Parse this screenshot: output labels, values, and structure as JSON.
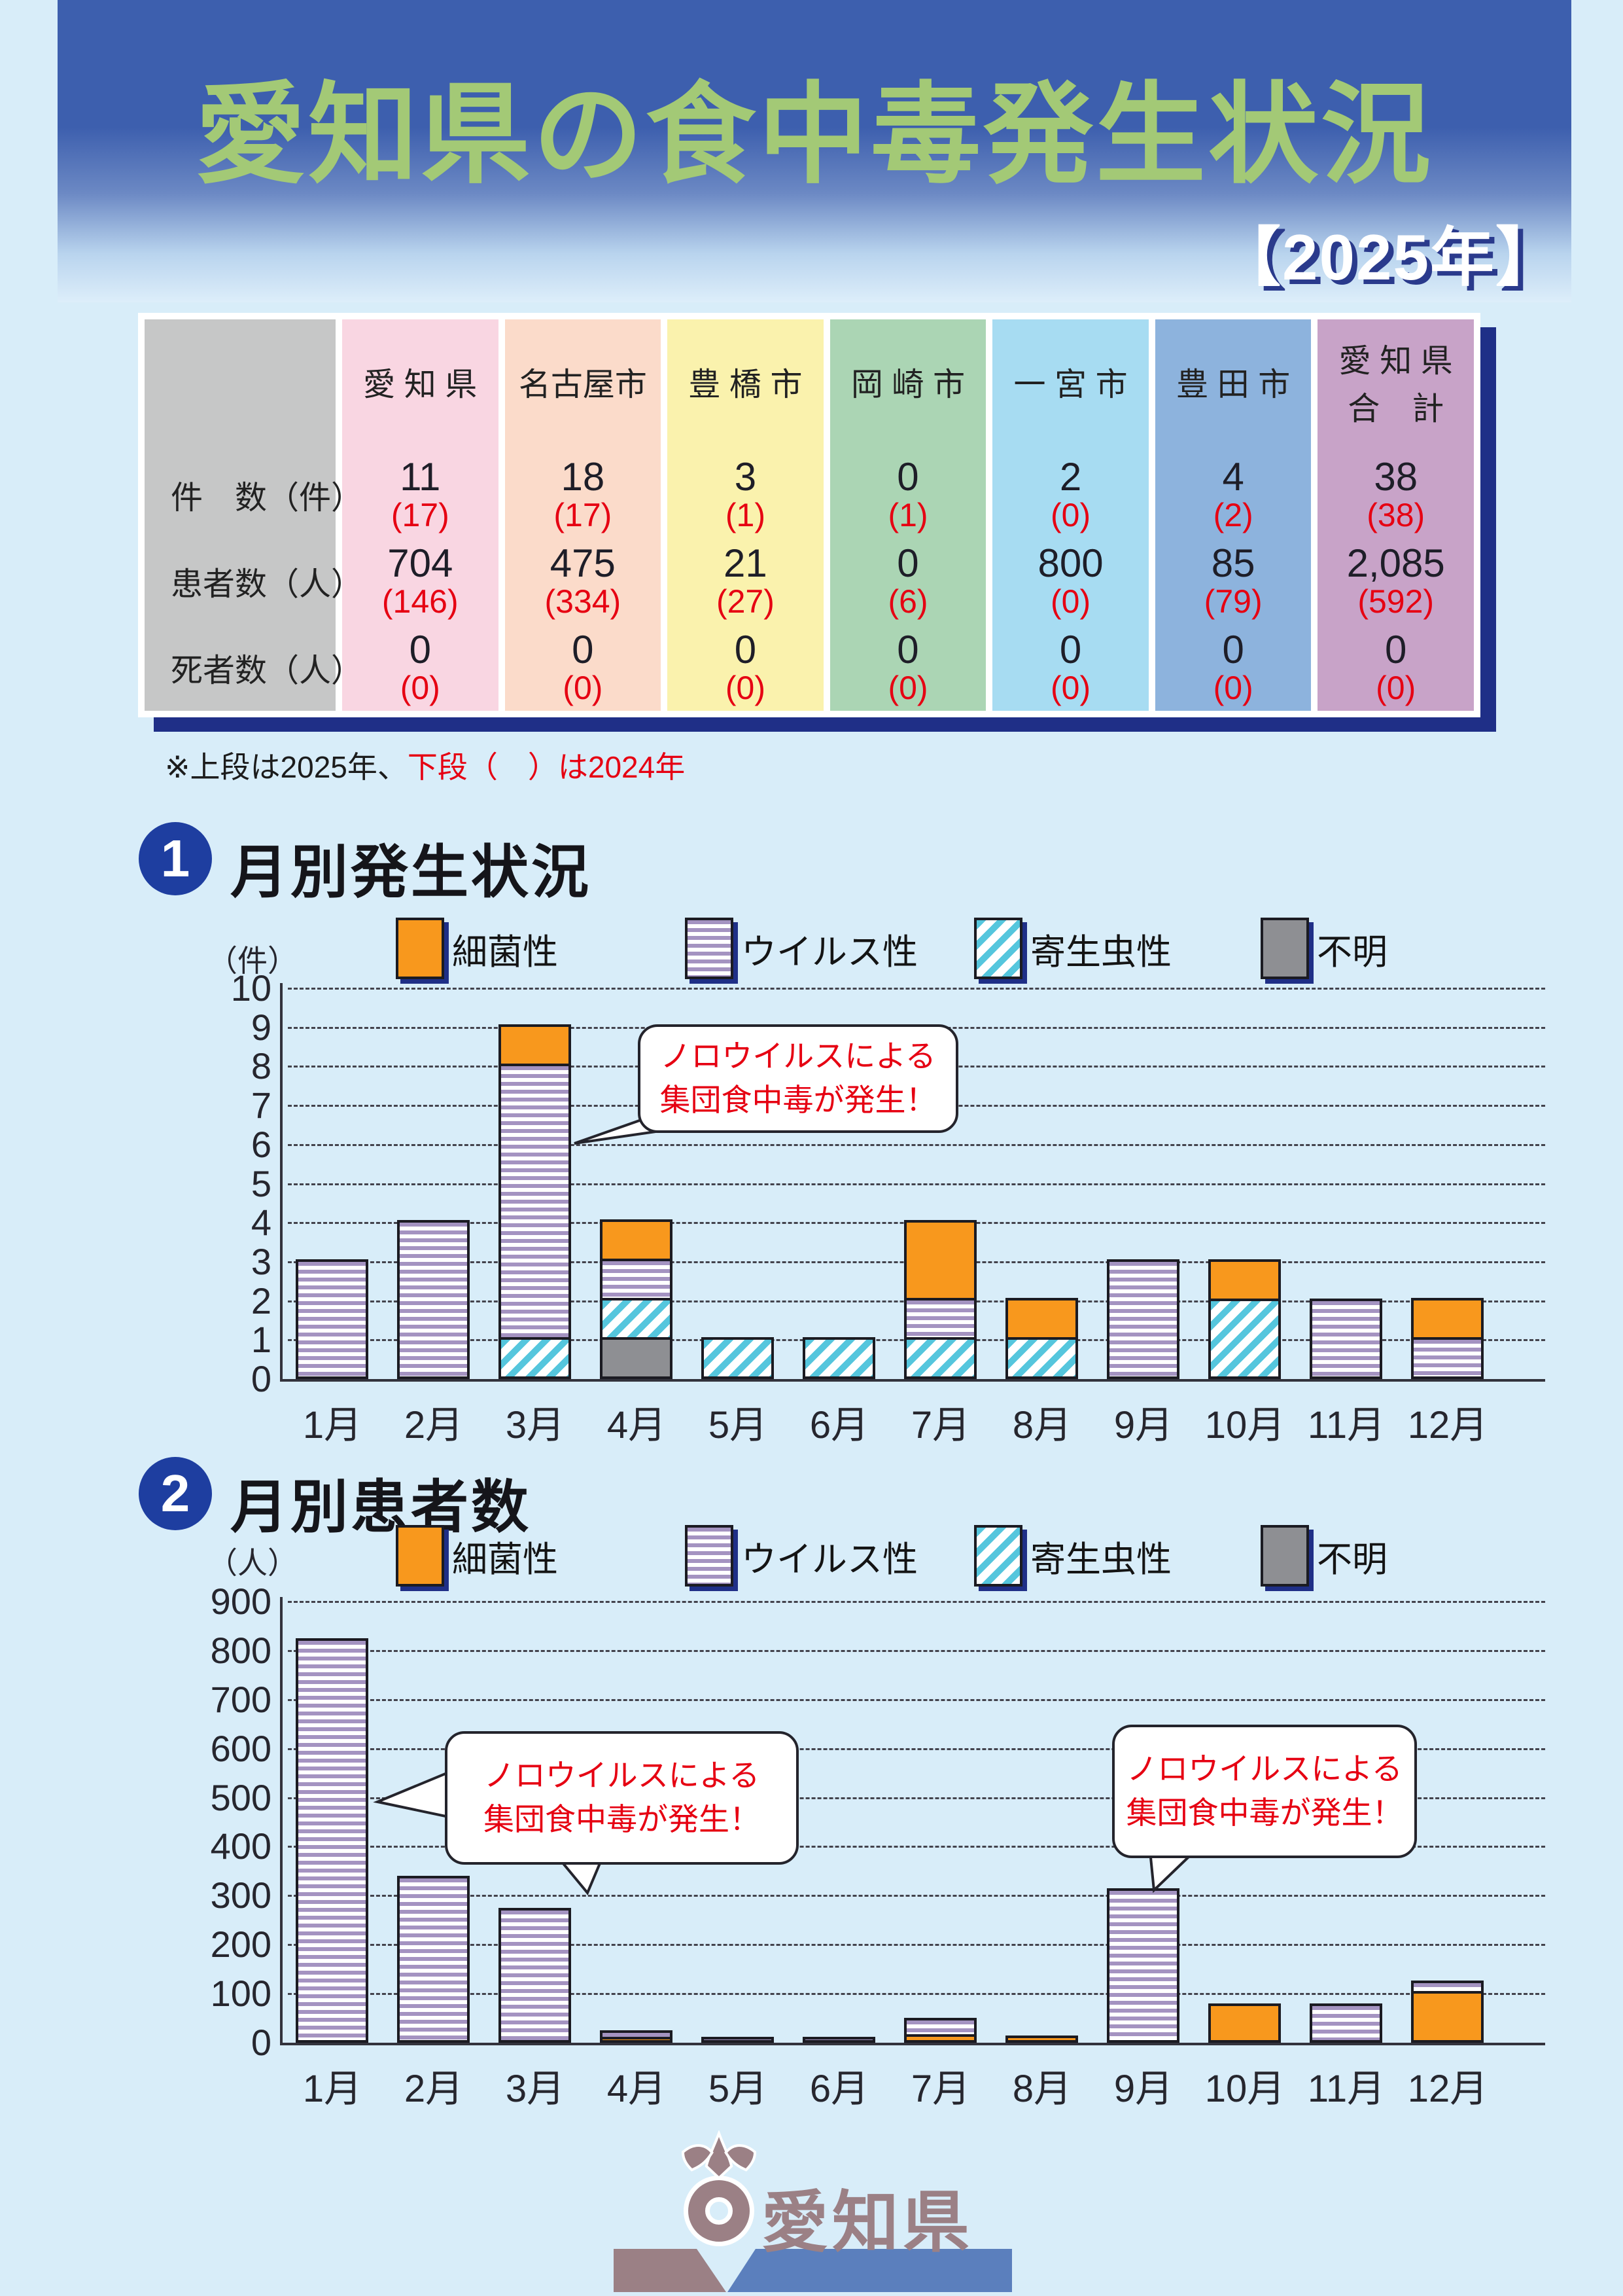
{
  "header": {
    "title": "愛知県の食中毒発生状況",
    "year": "【2025年】",
    "title_color": "#a3c976"
  },
  "summary_table": {
    "note_black": "※上段は2025年、",
    "note_red": "下段（　）は2024年",
    "row_labels": [
      "件　数（件）",
      "患者数（人）",
      "死者数（人）"
    ],
    "columns": [
      {
        "name": "愛 知 県",
        "name2": "",
        "color": "#f9d6e2",
        "values": [
          "11",
          "704",
          "0"
        ],
        "prev": [
          "(17)",
          "(146)",
          "(0)"
        ]
      },
      {
        "name": "名古屋市",
        "name2": "",
        "color": "#fbdbca",
        "values": [
          "18",
          "475",
          "0"
        ],
        "prev": [
          "(17)",
          "(334)",
          "(0)"
        ]
      },
      {
        "name": "豊 橋 市",
        "name2": "",
        "color": "#faf2ad",
        "values": [
          "3",
          "21",
          "0"
        ],
        "prev": [
          "(1)",
          "(27)",
          "(0)"
        ]
      },
      {
        "name": "岡 崎 市",
        "name2": "",
        "color": "#abd5b4",
        "values": [
          "0",
          "0",
          "0"
        ],
        "prev": [
          "(1)",
          "(6)",
          "(0)"
        ]
      },
      {
        "name": "一 宮 市",
        "name2": "",
        "color": "#a7dcf2",
        "values": [
          "2",
          "800",
          "0"
        ],
        "prev": [
          "(0)",
          "(0)",
          "(0)"
        ]
      },
      {
        "name": "豊 田 市",
        "name2": "",
        "color": "#8db3dd",
        "values": [
          "4",
          "85",
          "0"
        ],
        "prev": [
          "(2)",
          "(79)",
          "(0)"
        ]
      },
      {
        "name": "愛 知 県",
        "name2": "合　計",
        "color": "#c8a3c8",
        "values": [
          "38",
          "2,085",
          "0"
        ],
        "prev": [
          "(38)",
          "(592)",
          "(0)"
        ]
      }
    ]
  },
  "section1": {
    "number": "1",
    "title": "月別発生状況",
    "unit_label": "（件）"
  },
  "section2": {
    "number": "2",
    "title": "月別患者数",
    "unit_label": "（人）"
  },
  "legend": {
    "items": [
      {
        "key": "bacteria",
        "label": "細菌性"
      },
      {
        "key": "virus",
        "label": "ウイルス性"
      },
      {
        "key": "parasite",
        "label": "寄生虫性"
      },
      {
        "key": "unknown",
        "label": "不明"
      }
    ]
  },
  "colors": {
    "bacteria_orange": "#f8981d",
    "virus_purple": "#a493c1",
    "parasite_cyan": "#55c6dd",
    "unknown_gray": "#8e8f93",
    "highlight_red": "#e60012",
    "shadow_navy": "#1f2f87",
    "title_green": "#a3c976",
    "section_circle_blue": "#1e3ea0",
    "page_bg": "#d8edf9"
  },
  "chart_data": [
    {
      "id": "monthly-cases",
      "type": "bar",
      "stacked": true,
      "title": "月別発生状況",
      "ylabel": "件",
      "unit_label": "（件）",
      "categories": [
        "1月",
        "2月",
        "3月",
        "4月",
        "5月",
        "6月",
        "7月",
        "8月",
        "9月",
        "10月",
        "11月",
        "12月"
      ],
      "ylim": [
        0,
        10
      ],
      "ytick_step": 1,
      "yticks": [
        "0",
        "1",
        "2",
        "3",
        "4",
        "5",
        "6",
        "7",
        "8",
        "9",
        "10"
      ],
      "grid": "dashed",
      "legend_position": "top",
      "series": [
        {
          "key": "bacteria",
          "name": "細菌性",
          "values": [
            0,
            0,
            1,
            1,
            0,
            0,
            2,
            1,
            0,
            1,
            0,
            1
          ]
        },
        {
          "key": "virus",
          "name": "ウイルス性",
          "values": [
            3,
            4,
            7,
            1,
            0,
            0,
            1,
            0,
            3,
            0,
            2,
            1
          ]
        },
        {
          "key": "parasite",
          "name": "寄生虫性",
          "values": [
            0,
            0,
            1,
            1,
            1,
            1,
            1,
            1,
            0,
            2,
            0,
            0
          ]
        },
        {
          "key": "unknown",
          "name": "不明",
          "values": [
            0,
            0,
            0,
            1,
            0,
            0,
            0,
            0,
            0,
            0,
            0,
            0
          ]
        }
      ],
      "totals": [
        3,
        4,
        9,
        4,
        1,
        1,
        4,
        2,
        3,
        3,
        2,
        2
      ],
      "stack_order_per_month": [
        [
          "virus"
        ],
        [
          "virus"
        ],
        [
          "parasite",
          "virus",
          "bacteria"
        ],
        [
          "unknown",
          "parasite",
          "virus",
          "bacteria"
        ],
        [
          "parasite"
        ],
        [
          "parasite"
        ],
        [
          "parasite",
          "virus",
          "bacteria"
        ],
        [
          "parasite",
          "bacteria"
        ],
        [
          "virus"
        ],
        [
          "parasite",
          "bacteria"
        ],
        [
          "virus"
        ],
        [
          "virus",
          "bacteria"
        ]
      ],
      "annotations": [
        {
          "line1": "ノロウイルスによる",
          "line2": "集団食中毒が発生！",
          "target": "3月"
        }
      ]
    },
    {
      "id": "monthly-patients",
      "type": "bar",
      "stacked": true,
      "title": "月別患者数",
      "ylabel": "人",
      "unit_label": "（人）",
      "categories": [
        "1月",
        "2月",
        "3月",
        "4月",
        "5月",
        "6月",
        "7月",
        "8月",
        "9月",
        "10月",
        "11月",
        "12月"
      ],
      "ylim": [
        0,
        900
      ],
      "ytick_step": 100,
      "yticks": [
        "0",
        "100",
        "200",
        "300",
        "400",
        "500",
        "600",
        "700",
        "800",
        "900"
      ],
      "grid": "dashed",
      "legend_position": "top",
      "series": [
        {
          "key": "bacteria",
          "name": "細菌性",
          "values": [
            0,
            0,
            0,
            6,
            0,
            0,
            12,
            10,
            0,
            75,
            0,
            100
          ]
        },
        {
          "key": "virus",
          "name": "ウイルス性",
          "values": [
            820,
            335,
            270,
            14,
            2,
            2,
            33,
            0,
            310,
            0,
            75,
            21
          ]
        },
        {
          "key": "parasite",
          "name": "寄生虫性",
          "values": [
            0,
            0,
            0,
            0,
            0,
            0,
            0,
            0,
            0,
            0,
            0,
            0
          ]
        },
        {
          "key": "unknown",
          "name": "不明",
          "values": [
            0,
            0,
            0,
            0,
            0,
            0,
            0,
            0,
            0,
            0,
            0,
            0
          ]
        }
      ],
      "totals": [
        820,
        335,
        270,
        20,
        2,
        2,
        45,
        10,
        310,
        75,
        75,
        121
      ],
      "stack_order_per_month": [
        [
          "virus"
        ],
        [
          "virus"
        ],
        [
          "virus"
        ],
        [
          "bacteria",
          "virus"
        ],
        [
          "virus"
        ],
        [
          "virus"
        ],
        [
          "bacteria",
          "virus"
        ],
        [
          "bacteria"
        ],
        [
          "virus"
        ],
        [
          "bacteria"
        ],
        [
          "virus"
        ],
        [
          "bacteria",
          "virus"
        ]
      ],
      "annotations": [
        {
          "line1": "ノロウイルスによる",
          "line2": "集団食中毒が発生！",
          "target": "1月・2月"
        },
        {
          "line1": "ノロウイルスによる",
          "line2": "集団食中毒が発生！",
          "target": "9月"
        }
      ]
    }
  ],
  "footer": {
    "org": "愛知県"
  }
}
